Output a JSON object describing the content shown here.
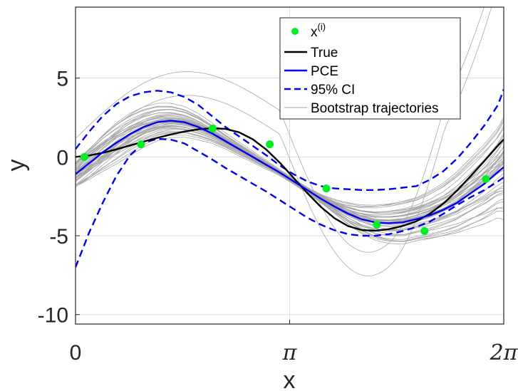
{
  "chart_data": {
    "type": "line",
    "title": "",
    "xlabel": "x",
    "ylabel": "y",
    "xlim": [
      0,
      6.2832
    ],
    "ylim": [
      -10.6,
      9.5
    ],
    "grid": true,
    "legend_position": "top-right",
    "x_ticks": [
      {
        "value": 0,
        "label": "0"
      },
      {
        "value": 3.1416,
        "label": "π"
      },
      {
        "value": 6.2832,
        "label": "2π"
      }
    ],
    "y_ticks": [
      {
        "value": 5,
        "label": "5"
      },
      {
        "value": 0,
        "label": "0"
      },
      {
        "value": -5,
        "label": "-5"
      },
      {
        "value": -10,
        "label": "-10"
      }
    ],
    "legend": [
      {
        "key": "samples",
        "label": "x",
        "sup": "(i)"
      },
      {
        "key": "true",
        "label": "True"
      },
      {
        "key": "pce",
        "label": "PCE"
      },
      {
        "key": "ci",
        "label": "95% CI"
      },
      {
        "key": "bootstrap",
        "label": "Bootstrap trajectories"
      }
    ],
    "samples": {
      "x": [
        0.13,
        0.96,
        2.01,
        2.85,
        3.68,
        4.42,
        5.12,
        6.02
      ],
      "y": [
        0.0,
        0.8,
        1.8,
        0.8,
        -2.0,
        -4.3,
        -4.7,
        -1.4
      ]
    },
    "series": [
      {
        "key": "true",
        "x": [
          0,
          0.2,
          0.4,
          0.6,
          0.8,
          1.0,
          1.2,
          1.4,
          1.6,
          1.8,
          2.0,
          2.2,
          2.4,
          2.6,
          2.8,
          3.0,
          3.2,
          3.4,
          3.6,
          3.8,
          4.0,
          4.2,
          4.4,
          4.6,
          4.8,
          5.0,
          5.2,
          5.4,
          5.6,
          5.8,
          6.0,
          6.2,
          6.283
        ],
        "y": [
          0.0,
          0.09,
          0.26,
          0.48,
          0.73,
          0.97,
          1.21,
          1.43,
          1.61,
          1.75,
          1.82,
          1.78,
          1.56,
          1.12,
          0.46,
          -0.38,
          -1.33,
          -2.29,
          -3.17,
          -3.89,
          -4.39,
          -4.64,
          -4.68,
          -4.58,
          -4.38,
          -4.08,
          -3.6,
          -2.95,
          -2.12,
          -1.2,
          -0.25,
          0.73,
          1.12
        ]
      },
      {
        "key": "pce",
        "x": [
          0,
          0.2,
          0.4,
          0.6,
          0.8,
          1.0,
          1.2,
          1.4,
          1.6,
          1.8,
          2.0,
          2.2,
          2.4,
          2.6,
          2.8,
          3.0,
          3.2,
          3.4,
          3.6,
          3.8,
          4.0,
          4.2,
          4.4,
          4.6,
          4.8,
          5.0,
          5.2,
          5.4,
          5.6,
          5.8,
          6.0,
          6.2,
          6.283
        ],
        "y": [
          -1.1,
          -0.4,
          0.3,
          0.9,
          1.45,
          1.9,
          2.2,
          2.3,
          2.2,
          1.9,
          1.5,
          1.0,
          0.5,
          0.0,
          -0.5,
          -1.0,
          -1.55,
          -2.1,
          -2.65,
          -3.15,
          -3.6,
          -3.95,
          -4.15,
          -4.2,
          -4.15,
          -3.95,
          -3.7,
          -3.35,
          -2.9,
          -2.3,
          -1.7,
          -0.95,
          -0.65
        ]
      },
      {
        "key": "ci_upper",
        "x": [
          0,
          0.2,
          0.4,
          0.6,
          0.8,
          1.0,
          1.2,
          1.4,
          1.6,
          1.8,
          2.0,
          2.2,
          2.4,
          2.6,
          2.8,
          3.0,
          3.2,
          3.4,
          3.6,
          3.8,
          4.0,
          4.2,
          4.4,
          4.6,
          4.8,
          5.0,
          5.2,
          5.4,
          5.6,
          5.8,
          6.0,
          6.2,
          6.283
        ],
        "y": [
          0.5,
          1.6,
          2.6,
          3.35,
          3.85,
          4.1,
          4.2,
          4.1,
          3.8,
          3.3,
          2.6,
          1.9,
          1.3,
          0.7,
          0.1,
          -0.55,
          -1.1,
          -1.55,
          -1.85,
          -2.0,
          -2.05,
          -2.1,
          -2.1,
          -2.05,
          -1.95,
          -1.85,
          -1.45,
          -0.9,
          -0.1,
          0.9,
          2.0,
          3.3,
          4.3
        ]
      },
      {
        "key": "ci_lower",
        "x": [
          0,
          0.2,
          0.4,
          0.6,
          0.8,
          1.0,
          1.2,
          1.4,
          1.6,
          1.8,
          2.0,
          2.2,
          2.4,
          2.6,
          2.8,
          3.0,
          3.2,
          3.4,
          3.6,
          3.8,
          4.0,
          4.2,
          4.4,
          4.6,
          4.8,
          5.0,
          5.2,
          5.4,
          5.6,
          5.8,
          6.0,
          6.2,
          6.283
        ],
        "y": [
          -7.0,
          -4.8,
          -2.9,
          -1.2,
          0.1,
          0.9,
          1.15,
          1.1,
          0.85,
          0.35,
          -0.15,
          -0.7,
          -1.2,
          -1.7,
          -2.2,
          -2.75,
          -3.3,
          -3.85,
          -4.3,
          -4.65,
          -4.9,
          -5.0,
          -5.0,
          -4.9,
          -4.7,
          -4.45,
          -4.1,
          -3.6,
          -3.05,
          -2.55,
          -2.1,
          -1.55,
          -1.3
        ]
      }
    ]
  },
  "colors": {
    "true": "#000000",
    "pce": "#0000ee",
    "ci": "#0000ee",
    "samples": "#00ee22",
    "bootstrap": "#a6a6a6",
    "grid": "#dcdcdc",
    "axis": "#262626"
  }
}
